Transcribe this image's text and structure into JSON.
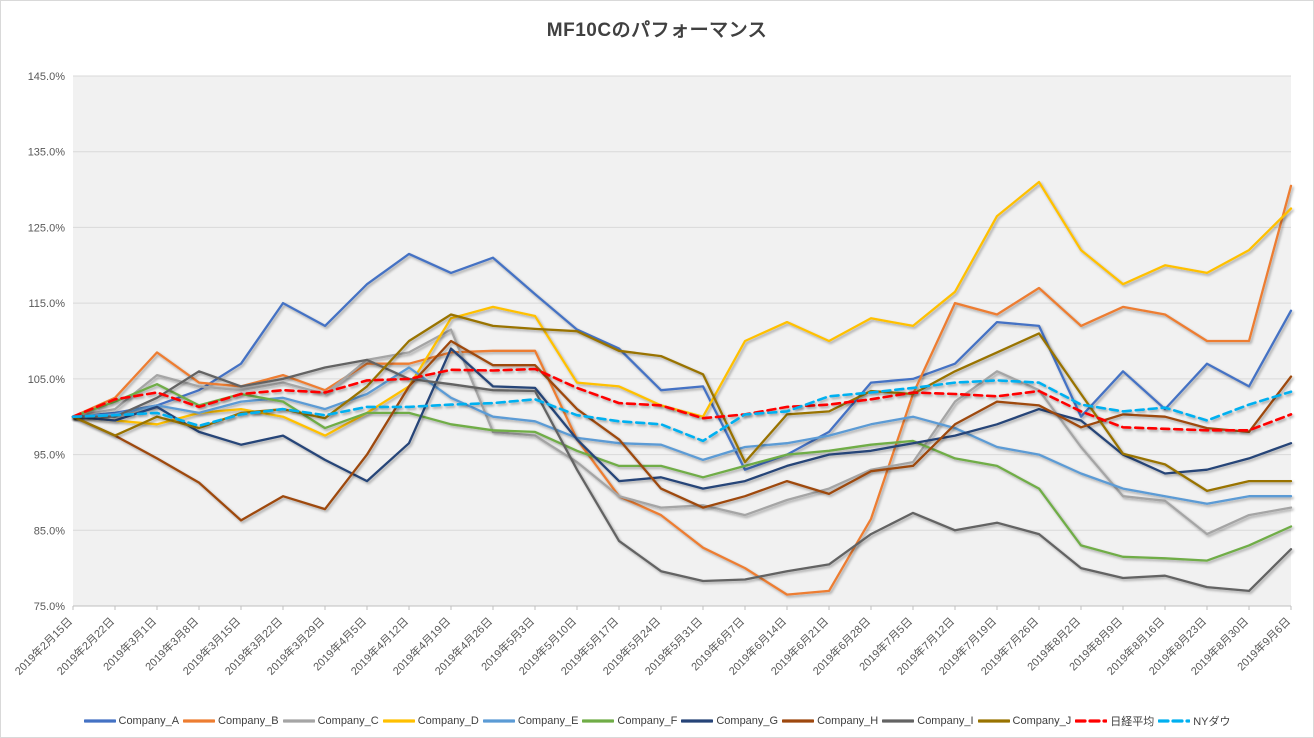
{
  "title": "MF10Cのパフォーマンス",
  "axes": {
    "y_tick_labels": [
      "145.0%",
      "135.0%",
      "125.0%",
      "115.0%",
      "105.0%",
      "95.0%",
      "85.0%",
      "75.0%"
    ]
  },
  "chart_data": {
    "type": "line",
    "title": "MF10Cのパフォーマンス",
    "xlabel": "",
    "ylabel": "",
    "ylim": [
      75,
      145
    ],
    "ytick_step": 10,
    "ytick_format": "percent_one_decimal",
    "grid": true,
    "plot_background": "#f1f1f1",
    "gridline_color": "#d9d9d9",
    "axis_color": "#bfbfbf",
    "tick_label_color": "#595959",
    "legend_position": "bottom",
    "x_labels": [
      "2019年2月15日",
      "2019年2月22日",
      "2019年3月1日",
      "2019年3月8日",
      "2019年3月15日",
      "2019年3月22日",
      "2019年3月29日",
      "2019年4月5日",
      "2019年4月12日",
      "2019年4月19日",
      "2019年4月26日",
      "2019年5月3日",
      "2019年5月10日",
      "2019年5月17日",
      "2019年5月24日",
      "2019年5月31日",
      "2019年6月7日",
      "2019年6月14日",
      "2019年6月21日",
      "2019年6月28日",
      "2019年7月5日",
      "2019年7月12日",
      "2019年7月19日",
      "2019年7月26日",
      "2019年8月2日",
      "2019年8月9日",
      "2019年8月16日",
      "2019年8月23日",
      "2019年8月30日",
      "2019年9月6日"
    ],
    "series": [
      {
        "name": "Company_A",
        "color": "#4472C4",
        "dashed": false,
        "values": [
          100,
          100.5,
          101.5,
          103.5,
          107,
          115,
          112,
          117.5,
          121.5,
          119,
          121,
          116.2,
          111.5,
          109,
          103.5,
          104,
          93,
          95,
          98,
          104.5,
          105,
          107,
          112.5,
          112,
          100,
          106,
          101,
          107,
          104,
          114
        ]
      },
      {
        "name": "Company_B",
        "color": "#ED7D31",
        "dashed": false,
        "values": [
          100,
          102.5,
          108.5,
          104.5,
          104,
          105.5,
          103.5,
          107,
          107,
          108.5,
          108.7,
          108.7,
          97,
          89.5,
          87,
          82.7,
          80,
          76.5,
          77,
          86.5,
          103,
          115,
          113.5,
          117,
          112,
          114.5,
          113.5,
          110,
          110,
          130.5
        ]
      },
      {
        "name": "Company_C",
        "color": "#A5A5A5",
        "dashed": false,
        "values": [
          100,
          101,
          105.5,
          104,
          103.5,
          104.5,
          103,
          107.5,
          108.5,
          111.5,
          98,
          97.5,
          94,
          89.5,
          88,
          88.3,
          87,
          89,
          90.5,
          93,
          94,
          102,
          106,
          103.5,
          96,
          89.5,
          88.9,
          84.5,
          87,
          88
        ]
      },
      {
        "name": "Company_D",
        "color": "#FFC000",
        "dashed": false,
        "values": [
          100,
          99.5,
          99,
          100.5,
          101,
          100,
          97.5,
          100.5,
          104,
          113,
          114.5,
          113.3,
          104.5,
          104,
          101.5,
          100,
          110,
          112.5,
          110,
          113,
          112,
          116.5,
          126.5,
          131,
          122,
          117.5,
          120,
          119,
          122,
          127.5
        ]
      },
      {
        "name": "Company_E",
        "color": "#5B9BD5",
        "dashed": false,
        "values": [
          100,
          100.3,
          101.5,
          100.5,
          102,
          102.5,
          101,
          103,
          106.5,
          102.5,
          100,
          99.4,
          97.2,
          96.5,
          96.3,
          94.3,
          96,
          96.5,
          97.5,
          99,
          100,
          98.5,
          96,
          95,
          92.5,
          90.5,
          89.5,
          88.5,
          89.5,
          89.5
        ]
      },
      {
        "name": "Company_F",
        "color": "#70AD47",
        "dashed": false,
        "values": [
          100,
          102,
          104.3,
          101.5,
          103,
          102,
          98.5,
          100.5,
          100.5,
          99,
          98.2,
          98,
          95.5,
          93.5,
          93.5,
          92,
          93.5,
          95,
          95.5,
          96.3,
          96.8,
          94.5,
          93.5,
          90.5,
          83,
          81.5,
          81.3,
          81,
          83,
          85.5
        ]
      },
      {
        "name": "Company_G",
        "color": "#264478",
        "dashed": false,
        "values": [
          100,
          99.5,
          101.3,
          98,
          96.3,
          97.5,
          94.3,
          91.5,
          96.5,
          109,
          104,
          103.8,
          97,
          91.5,
          92,
          90.5,
          91.5,
          93.5,
          95,
          95.5,
          96.5,
          97.5,
          99,
          101,
          99.5,
          95,
          92.5,
          93,
          94.5,
          96.5
        ]
      },
      {
        "name": "Company_H",
        "color": "#9E480E",
        "dashed": false,
        "values": [
          100,
          97.5,
          94.5,
          91.3,
          86.3,
          89.5,
          87.8,
          95,
          104,
          110,
          106.8,
          106.8,
          101,
          97,
          90.5,
          88,
          89.5,
          91.5,
          89.8,
          92.8,
          93.5,
          99,
          102,
          101.5,
          98.6,
          100.3,
          100,
          98.5,
          98,
          105.3
        ]
      },
      {
        "name": "Company_I",
        "color": "#636363",
        "dashed": false,
        "values": [
          100,
          100,
          102.5,
          106,
          104,
          105,
          106.5,
          107.5,
          105,
          104.3,
          103.5,
          103.4,
          93,
          83.6,
          79.6,
          78.3,
          78.5,
          79.6,
          80.5,
          84.5,
          87.3,
          85,
          86,
          84.5,
          80,
          78.7,
          79,
          77.5,
          77,
          82.5
        ]
      },
      {
        "name": "Company_J",
        "color": "#997300",
        "dashed": false,
        "values": [
          100,
          97.5,
          100,
          98.5,
          100.5,
          101,
          99.8,
          104,
          110,
          113.5,
          112,
          111.6,
          111.3,
          108.7,
          108,
          105.6,
          94,
          100.3,
          100.7,
          103.4,
          103,
          106,
          108.5,
          111,
          103,
          95.1,
          93.7,
          90.2,
          91.5,
          91.5
        ]
      },
      {
        "name": "日経平均",
        "color": "#FF0000",
        "dashed": true,
        "values": [
          100,
          102.3,
          103.2,
          101.3,
          103,
          103.5,
          103.2,
          104.8,
          105,
          106.2,
          106.1,
          106.3,
          103.8,
          101.8,
          101.5,
          99.8,
          100.3,
          101.3,
          101.6,
          102.3,
          103.2,
          103,
          102.7,
          103.4,
          100.7,
          98.6,
          98.4,
          98.2,
          98.2,
          100.3
        ]
      },
      {
        "name": "NYダウ",
        "color": "#00B0F0",
        "dashed": true,
        "values": [
          100,
          100.2,
          100.5,
          98.8,
          100.3,
          101,
          100.2,
          101.3,
          101.3,
          101.6,
          101.8,
          102.3,
          100.2,
          99.4,
          99,
          96.8,
          100.3,
          100.7,
          102.7,
          103.2,
          103.8,
          104.5,
          104.8,
          104.5,
          101.6,
          100.7,
          101.2,
          99.5,
          101.6,
          103.3
        ]
      }
    ]
  }
}
